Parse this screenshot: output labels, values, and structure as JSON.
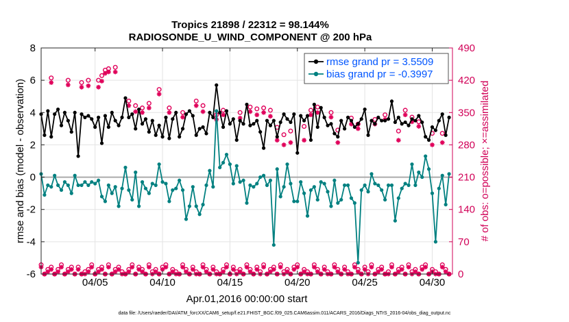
{
  "chart_data": {
    "type": "line",
    "title": "Tropics 21898 / 22312 = 98.144%",
    "subtitle": "RADIOSONDE_U_WIND_COMPONENT @ 200 hPa",
    "xlabel": "Apr.01,2016 00:00:00 start",
    "ylabel": "rmse and bias (model - observation)",
    "y2label": "# of obs: o=possible; ×=assimilated",
    "footer": "data file: /Users/raeder/DAI/ATM_forcXX/CAM6_setup/f.e21.FHIST_BGC.f09_025.CAM6assim.011/ACARS_2016/Diags_NTrS_2016-04/obs_diag_output.nc",
    "xlim": [
      1,
      31.5
    ],
    "ylim": [
      -6,
      8
    ],
    "y2lim": [
      0,
      490
    ],
    "xticks": [
      5,
      10,
      15,
      20,
      25,
      30
    ],
    "xtick_labels": [
      "04/05",
      "04/10",
      "04/15",
      "04/20",
      "04/25",
      "04/30"
    ],
    "yticks": [
      -6,
      -4,
      -2,
      0,
      2,
      4,
      6,
      8
    ],
    "ytick_labels": [
      "-6",
      "-4",
      "-2",
      "0",
      "2",
      "4",
      "6",
      "8"
    ],
    "y2ticks": [
      0,
      70,
      140,
      210,
      280,
      350,
      420,
      490
    ],
    "y2tick_labels": [
      "0",
      "70",
      "140",
      "210",
      "280",
      "350",
      "420",
      "490"
    ],
    "grid": true,
    "legend": [
      {
        "name": "rmse grand pr = 3.5509",
        "color": "#000000"
      },
      {
        "name": "bias grand pr = -0.3997",
        "color": "#008080"
      }
    ],
    "colors": {
      "rmse": "#000000",
      "bias": "#008080",
      "obs": "#e0005a",
      "right_axis": "#d10057",
      "zero_line": "#aaaaaa"
    },
    "x": [
      1.0,
      1.25,
      1.5,
      1.75,
      2.0,
      2.25,
      2.5,
      2.75,
      3.0,
      3.25,
      3.5,
      3.75,
      4.0,
      4.25,
      4.5,
      4.75,
      5.0,
      5.25,
      5.5,
      5.75,
      6.0,
      6.25,
      6.5,
      6.75,
      7.0,
      7.25,
      7.5,
      7.75,
      8.0,
      8.25,
      8.5,
      8.75,
      9.0,
      9.25,
      9.5,
      9.75,
      10.0,
      10.25,
      10.5,
      10.75,
      11.0,
      11.25,
      11.5,
      11.75,
      12.0,
      12.25,
      12.5,
      12.75,
      13.0,
      13.25,
      13.5,
      13.75,
      14.0,
      14.25,
      14.5,
      14.75,
      15.0,
      15.25,
      15.5,
      15.75,
      16.0,
      16.25,
      16.5,
      16.75,
      17.0,
      17.25,
      17.5,
      17.75,
      18.0,
      18.25,
      18.5,
      18.75,
      19.0,
      19.25,
      19.5,
      19.75,
      20.0,
      20.25,
      20.5,
      20.75,
      21.0,
      21.25,
      21.5,
      21.75,
      22.0,
      22.25,
      22.5,
      22.75,
      23.0,
      23.25,
      23.5,
      23.75,
      24.0,
      24.25,
      24.5,
      24.75,
      25.0,
      25.25,
      25.5,
      25.75,
      26.0,
      26.25,
      26.5,
      26.75,
      27.0,
      27.25,
      27.5,
      27.75,
      28.0,
      28.25,
      28.5,
      28.75,
      29.0,
      29.25,
      29.5,
      29.75,
      30.0,
      30.25,
      30.5,
      30.75,
      31.0,
      31.25
    ],
    "series": [
      {
        "name": "rmse",
        "values": [
          3.9,
          2.6,
          4.1,
          2.5,
          3.9,
          4.2,
          3.2,
          4.0,
          3.5,
          2.8,
          4.0,
          1.3,
          3.9,
          3.7,
          3.8,
          3.6,
          3.1,
          3.7,
          2.1,
          3.8,
          3.1,
          4.0,
          3.5,
          3.2,
          3.7,
          4.9,
          3.7,
          3.9,
          3.0,
          4.2,
          3.3,
          3.6,
          2.8,
          3.5,
          2.6,
          3.2,
          2.5,
          3.7,
          2.4,
          3.6,
          4.0,
          2.5,
          3.0,
          3.9,
          4.1,
          3.8,
          2.6,
          3.0,
          3.1,
          2.7,
          4.0,
          3.7,
          5.7,
          4.0,
          3.1,
          4.1,
          3.3,
          3.6,
          2.3,
          3.5,
          3.3,
          4.5,
          3.2,
          3.3,
          3.5,
          2.8,
          1.8,
          3.5,
          3.2,
          3.5,
          2.5,
          3.4,
          3.9,
          3.6,
          3.4,
          3.9,
          1.5,
          3.8,
          3.5,
          3.8,
          2.3,
          4.5,
          3.1,
          4.3,
          3.7,
          3.2,
          3.3,
          2.7,
          2.5,
          3.5,
          3.0,
          3.7,
          3.5,
          3.1,
          3.3,
          3.6,
          4.2,
          2.6,
          3.5,
          3.3,
          3.7,
          3.5,
          3.5,
          3.6,
          4.7,
          3.4,
          3.7,
          3.3,
          3.4,
          3.2,
          3.6,
          3.5,
          3.8,
          3.4,
          2.5,
          2.3,
          3.1,
          2.9,
          3.5,
          3.9,
          2.6,
          3.7
        ]
      },
      {
        "name": "bias",
        "values": [
          0.2,
          -1.1,
          -0.5,
          -0.6,
          0.1,
          -0.5,
          -0.8,
          -0.3,
          -0.5,
          -1.0,
          0.1,
          -0.5,
          -0.5,
          -0.3,
          -0.5,
          -0.3,
          -0.4,
          -0.2,
          -1.2,
          -1.5,
          -0.5,
          -1.0,
          -0.6,
          -1.8,
          -0.7,
          0.6,
          -0.8,
          -1.4,
          0.3,
          -1.8,
          -0.3,
          -0.7,
          -1.0,
          -0.4,
          -0.5,
          0.8,
          -0.3,
          -0.4,
          -1.5,
          -0.8,
          -0.7,
          -0.2,
          -0.8,
          -2.6,
          -1.8,
          -0.6,
          -1.8,
          -2.3,
          -1.7,
          -0.5,
          0.4,
          -0.6,
          4.1,
          0.6,
          0.9,
          1.4,
          0.8,
          -0.4,
          0.7,
          -0.3,
          -0.2,
          -1.6,
          -0.5,
          -0.6,
          -0.4,
          0.0,
          0.1,
          -0.5,
          -0.2,
          -4.2,
          0.5,
          -1.2,
          -0.6,
          0.8,
          -0.4,
          -1.5,
          -1.5,
          -0.3,
          -1.0,
          -2.4,
          -0.8,
          -0.6,
          -1.4,
          -0.3,
          -0.4,
          -0.9,
          -1.8,
          -0.2,
          -1.6,
          -1.4,
          -0.5,
          -0.5,
          -1.3,
          -1.6,
          -5.3,
          -0.8,
          -0.5,
          -0.9,
          0.2,
          -0.4,
          -0.5,
          -0.8,
          -1.4,
          -0.5,
          -0.5,
          -2.7,
          -1.3,
          -0.7,
          -0.4,
          -0.5,
          0.8,
          -0.5,
          0.3,
          0.0,
          1.3,
          0.5,
          -1.0,
          -4.0,
          -0.7,
          0.1,
          -1.7,
          0.2
        ]
      }
    ],
    "obs_possible": [
      20,
      0,
      10,
      15,
      0,
      10,
      20,
      0,
      10,
      15,
      0,
      15,
      0,
      5,
      10,
      20,
      0,
      10,
      15,
      0,
      20,
      0,
      10,
      15,
      5,
      0,
      10,
      20,
      0,
      15,
      10,
      0,
      20,
      5,
      10,
      0,
      15,
      20,
      0,
      10,
      5,
      0,
      20,
      10,
      0,
      15,
      5,
      0,
      20,
      10,
      0,
      15,
      5,
      0,
      10,
      20,
      0,
      15,
      5,
      10,
      0,
      20,
      10,
      0,
      15,
      5,
      20,
      0,
      10,
      15,
      0,
      20,
      5,
      10,
      0,
      15,
      20,
      0,
      10,
      5,
      0,
      20,
      10,
      0,
      15,
      5,
      0,
      20,
      10,
      0,
      15,
      5,
      0,
      20,
      10,
      0,
      15,
      5,
      20,
      0,
      10,
      15,
      0,
      5,
      20,
      0,
      10,
      15,
      0,
      20,
      5,
      10,
      0,
      15,
      20,
      0,
      10,
      5,
      0,
      20,
      10,
      0
    ],
    "obs_assimilated": [
      15,
      0,
      5,
      10,
      0,
      5,
      15,
      0,
      5,
      10,
      0,
      10,
      0,
      0,
      5,
      15,
      0,
      5,
      10,
      0,
      15,
      0,
      5,
      10,
      0,
      0,
      5,
      15,
      0,
      10,
      5,
      0,
      15,
      0,
      5,
      0,
      10,
      15,
      0,
      5,
      0,
      0,
      15,
      5,
      0,
      10,
      0,
      0,
      15,
      5,
      0,
      10,
      0,
      0,
      5,
      15,
      0,
      10,
      0,
      5,
      0,
      15,
      5,
      0,
      10,
      0,
      15,
      0,
      5,
      10,
      0,
      15,
      0,
      5,
      0,
      10,
      15,
      0,
      5,
      0,
      0,
      15,
      5,
      0,
      10,
      0,
      0,
      15,
      5,
      0,
      10,
      0,
      0,
      15,
      5,
      0,
      10,
      0,
      15,
      0,
      5,
      10,
      0,
      0,
      15,
      0,
      5,
      10,
      0,
      15,
      0,
      5,
      0,
      10,
      15,
      0,
      5,
      0,
      0,
      15,
      5,
      0
    ],
    "obs_possible_upper_x": [
      1.75,
      3.0,
      4.0,
      4.5,
      5.25,
      5.5,
      5.75,
      6.0,
      6.5,
      7.5,
      8.0,
      8.5,
      9.0,
      9.75,
      10.5,
      11.5,
      12.5,
      13.0,
      14.0,
      14.5,
      15.75,
      16.5,
      17.0,
      17.5,
      18.0,
      18.5,
      19.0,
      19.5,
      20.5,
      21.0,
      21.5,
      22.5,
      23.0,
      24.0,
      24.5,
      25.75,
      26.5,
      27.5,
      28.0,
      28.5,
      29.0,
      30.0,
      30.75
    ],
    "obs_possible_upper_values": [
      425,
      420,
      415,
      420,
      420,
      430,
      442,
      445,
      448,
      375,
      365,
      360,
      370,
      400,
      360,
      350,
      375,
      365,
      345,
      355,
      350,
      362,
      358,
      360,
      355,
      318,
      302,
      310,
      320,
      355,
      362,
      350,
      312,
      338,
      325,
      335,
      345,
      310,
      355,
      340,
      330,
      305,
      305
    ],
    "obs_assimilated_upper_values": [
      415,
      410,
      405,
      408,
      405,
      418,
      435,
      438,
      438,
      365,
      352,
      350,
      360,
      390,
      350,
      340,
      365,
      352,
      335,
      345,
      338,
      352,
      345,
      350,
      342,
      290,
      280,
      285,
      290,
      345,
      350,
      340,
      285,
      325,
      315,
      325,
      335,
      290,
      345,
      330,
      320,
      280,
      285
    ]
  }
}
